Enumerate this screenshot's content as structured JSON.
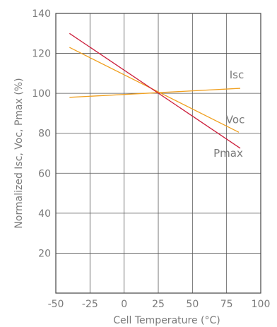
{
  "chart_data": {
    "type": "line",
    "title": "",
    "xlabel": "Cell Temperature (°C)",
    "ylabel": "Normalized Isc, Voc, Pmax (%)",
    "xlim": [
      -50,
      100
    ],
    "ylim": [
      0,
      140
    ],
    "x_ticks": [
      "-50",
      "-25",
      "0",
      "25",
      "50",
      "75",
      "100"
    ],
    "y_ticks": [
      "20",
      "40",
      "60",
      "80",
      "100",
      "120",
      "140"
    ],
    "grid": true,
    "series": [
      {
        "name": "Isc",
        "color": "#f0a020",
        "x": [
          -40,
          85
        ],
        "y": [
          98,
          102.5
        ]
      },
      {
        "name": "Voc",
        "color": "#f0a020",
        "x": [
          -40,
          84
        ],
        "y": [
          123,
          80.5
        ]
      },
      {
        "name": "Pmax",
        "color": "#cc1f3c",
        "x": [
          -40,
          85
        ],
        "y": [
          130,
          72.5
        ]
      }
    ]
  }
}
